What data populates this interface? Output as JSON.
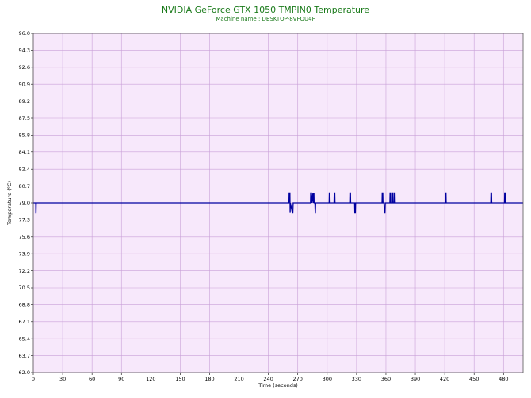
{
  "chart_data": {
    "type": "line",
    "title": "NVIDIA GeForce GTX 1050 TMPIN0 Temperature",
    "subtitle": "Machine name : DESKTOP-8VFQU4F",
    "xlabel": "Time (seconds)",
    "ylabel": "Temperature (°C)",
    "xlim": [
      0,
      500
    ],
    "ylim": [
      62.0,
      96.0
    ],
    "x_ticks": [
      "0",
      "30",
      "60",
      "90",
      "120",
      "150",
      "180",
      "210",
      "240",
      "270",
      "300",
      "330",
      "360",
      "390",
      "420",
      "450",
      "480"
    ],
    "y_ticks": [
      "96.0",
      "94.3",
      "92.6",
      "90.9",
      "89.2",
      "87.5",
      "85.8",
      "84.1",
      "82.4",
      "80.7",
      "79.0",
      "77.3",
      "75.6",
      "73.9",
      "72.2",
      "70.5",
      "68.8",
      "67.1",
      "65.4",
      "63.7",
      "62.0"
    ],
    "grid": true,
    "colors": {
      "line": "#0000a0",
      "plot_bg": "#f7e8fb",
      "grid": "#c9a0d8",
      "title": "#1a7a1a"
    },
    "series": [
      {
        "baseline": 79.0,
        "x": [
          0,
          2.5,
          2.6,
          2.8,
          3.0,
          261,
          261.2,
          262,
          262.2,
          262.5,
          264.5,
          265,
          265.3,
          283,
          283.2,
          284,
          284.3,
          285.5,
          285.7,
          286.5,
          286.7,
          287.5,
          287.8,
          288,
          288.3,
          302,
          302.2,
          302.8,
          303,
          307,
          307.2,
          307.8,
          308,
          323,
          323.2,
          323.8,
          324,
          328,
          328.2,
          328.8,
          329,
          356,
          356.2,
          356.8,
          357,
          358,
          358.3,
          359,
          359.3,
          364,
          364.2,
          364.8,
          365,
          366.5,
          366.7,
          367.2,
          367.4,
          368.5,
          368.7,
          369.3,
          369.5,
          420.5,
          420.7,
          421.3,
          421.5,
          467,
          467.2,
          467.8,
          468,
          481,
          481.2,
          481.8,
          482,
          500
        ],
        "y": [
          79.0,
          79.0,
          78.0,
          78.0,
          79.0,
          79.0,
          80.0,
          80.0,
          78.0,
          79.0,
          78.0,
          78.0,
          79.0,
          79.0,
          80.0,
          80.0,
          79.0,
          80.0,
          79.0,
          80.0,
          79.0,
          79.0,
          78.0,
          78.0,
          79.0,
          79.0,
          80.0,
          80.0,
          79.0,
          79.0,
          80.0,
          80.0,
          79.0,
          79.0,
          80.0,
          80.0,
          79.0,
          79.0,
          78.0,
          78.0,
          79.0,
          79.0,
          80.0,
          80.0,
          79.0,
          79.0,
          78.0,
          78.0,
          79.0,
          79.0,
          80.0,
          80.0,
          79.0,
          79.0,
          80.0,
          80.0,
          79.0,
          79.0,
          80.0,
          80.0,
          79.0,
          79.0,
          80.0,
          80.0,
          79.0,
          79.0,
          80.0,
          80.0,
          79.0,
          79.0,
          80.0,
          80.0,
          79.0,
          79.0
        ]
      }
    ]
  }
}
